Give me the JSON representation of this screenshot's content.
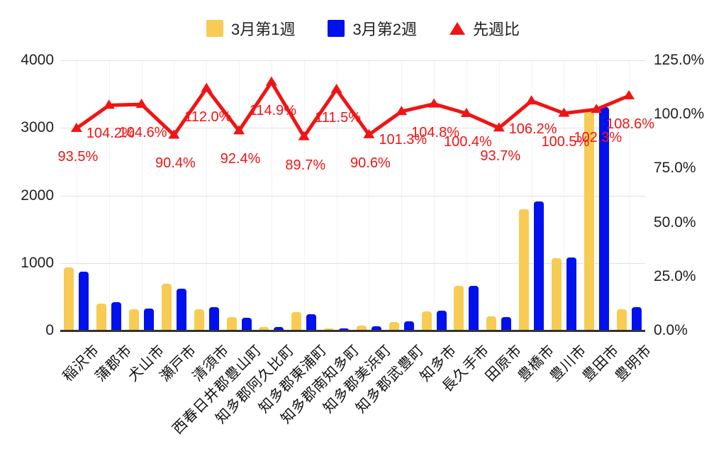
{
  "colors": {
    "week1_bar": "#F8CB55",
    "week2_bar": "#0011EE",
    "ratio_line": "#F01414",
    "axis_text": "#212121",
    "gridline": "#E0E0E0",
    "background": "#FFFFFF"
  },
  "chart_data": {
    "type": "bar",
    "subtype": "combo-bar-line-dual-axis",
    "categories": [
      "稲沢市",
      "蒲郡市",
      "犬山市",
      "瀬戸市",
      "清須市",
      "西春日井郡豊山町",
      "知多郡阿久比町",
      "知多郡東浦町",
      "知多郡南知多町",
      "知多郡美浜町",
      "知多郡武豊町",
      "知多市",
      "長久手市",
      "田原市",
      "豊橋市",
      "豊川市",
      "豊田市",
      "豊明市"
    ],
    "series": [
      {
        "name": "3月第1週",
        "type": "bar",
        "axis": "left",
        "color": "#F8CB55",
        "values": [
          930,
          400,
          310,
          690,
          310,
          200,
          50,
          270,
          30,
          70,
          130,
          280,
          660,
          215,
          1800,
          1075,
          3230,
          320
        ]
      },
      {
        "name": "3月第2週",
        "type": "bar",
        "axis": "left",
        "color": "#0011EE",
        "values": [
          870,
          417,
          324,
          624,
          347,
          185,
          57,
          242,
          33,
          63,
          132,
          293,
          663,
          201,
          1912,
          1080,
          3304,
          348
        ]
      },
      {
        "name": "先週比",
        "type": "line",
        "axis": "right",
        "color": "#F01414",
        "values": [
          93.5,
          104.2,
          104.6,
          90.4,
          112.0,
          92.4,
          114.9,
          89.7,
          111.5,
          90.6,
          101.3,
          104.8,
          100.4,
          93.7,
          106.2,
          100.5,
          102.3,
          108.6
        ],
        "labels": [
          "93.5%",
          "104.2%",
          "104.6%",
          "90.4%",
          "112.0%",
          "92.4%",
          "114.9%",
          "89.7%",
          "111.5%",
          "90.6%",
          "101.3%",
          "104.8%",
          "100.4%",
          "93.7%",
          "106.2%",
          "100.5%",
          "102.3%",
          "108.6%"
        ]
      }
    ],
    "left_axis": {
      "min": 0,
      "max": 4000,
      "ticks": [
        0,
        1000,
        2000,
        3000,
        4000
      ],
      "tick_labels": [
        "0",
        "1000",
        "2000",
        "3000",
        "4000"
      ]
    },
    "right_axis": {
      "min": 0,
      "max": 125,
      "ticks": [
        0,
        25,
        50,
        75,
        100,
        125
      ],
      "tick_labels": [
        "0.0%",
        "25.0%",
        "50.0%",
        "75.0%",
        "100.0%",
        "125.0%"
      ]
    },
    "legend_position": "top",
    "grid": true
  }
}
